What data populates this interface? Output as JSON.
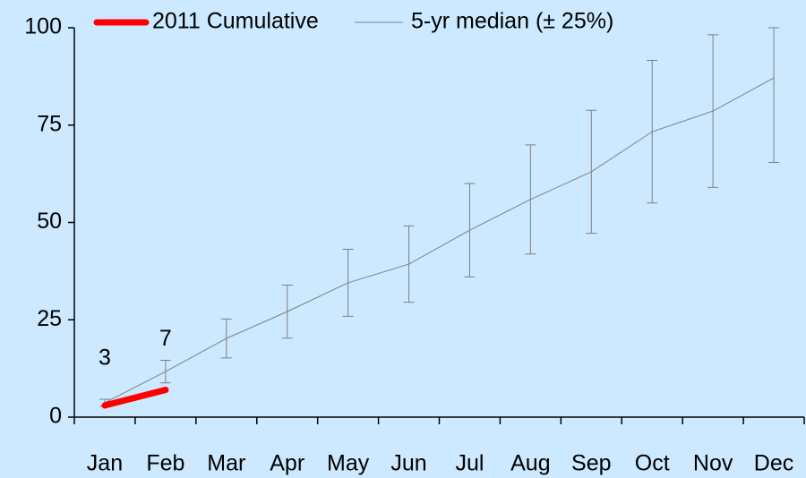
{
  "chart_data": {
    "type": "line",
    "categories": [
      "Jan",
      "Feb",
      "Mar",
      "Apr",
      "May",
      "Jun",
      "Jul",
      "Aug",
      "Sep",
      "Oct",
      "Nov",
      "Dec"
    ],
    "series": [
      {
        "name": "2011 Cumulative",
        "color": "#ff0000",
        "values": [
          3,
          7,
          null,
          null,
          null,
          null,
          null,
          null,
          null,
          null,
          null,
          null
        ],
        "data_labels": true
      },
      {
        "name": "5-yr median (± 25%)",
        "color": "#808080",
        "values": [
          3.7,
          11.7,
          20.2,
          27.1,
          34.5,
          39.3,
          48,
          55.9,
          63,
          73.3,
          78.6,
          87.1
        ],
        "errors": [
          0.9,
          2.9,
          5,
          6.8,
          8.6,
          9.8,
          12,
          14,
          15.8,
          18.3,
          19.6,
          21.7
        ]
      }
    ],
    "ylim": [
      0,
      100
    ],
    "yticks": [
      0,
      25,
      50,
      75,
      100
    ],
    "legend": "top"
  }
}
